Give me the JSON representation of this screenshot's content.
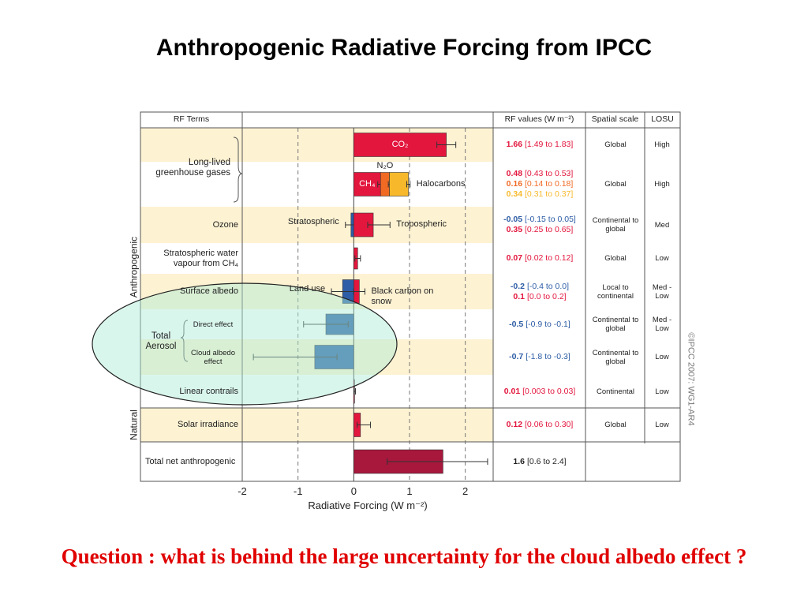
{
  "title": "Anthropogenic Radiative Forcing from IPCC",
  "question": "Question : what is behind the large uncertainty for the cloud albedo effect ?",
  "chart_data": {
    "type": "bar",
    "orientation": "horizontal",
    "headers": [
      "RF Terms",
      "RF values (W m⁻²)",
      "Spatial scale",
      "LOSU"
    ],
    "group_labels": [
      "Anthropogenic",
      "Natural"
    ],
    "credit": "©IPCC 2007: WG1-AR4",
    "xlabel": "Radiative Forcing (W m⁻²)",
    "xlim": [
      -2,
      2.5
    ],
    "xticks": [
      -2,
      -1,
      0,
      1,
      2
    ],
    "grid": true,
    "rows": [
      {
        "group": "Long-lived greenhouse gases",
        "spatial": "Global",
        "losu": "High",
        "bars": [
          {
            "label": "CO₂",
            "label_position": "inside",
            "value": 1.66,
            "low": 1.49,
            "high": 1.83,
            "range_label": "[1.49 to 1.83]",
            "color": "#e3173e"
          }
        ]
      },
      {
        "spatial": "Global",
        "losu": "High",
        "bars": [
          {
            "label": "CH₄",
            "label_position": "inside",
            "value": 0.48,
            "low": 0.43,
            "high": 0.53,
            "range_label": "[0.43 to 0.53]",
            "color": "#e3173e"
          },
          {
            "label": "N₂O",
            "label_position": "above",
            "value": 0.16,
            "low": 0.14,
            "high": 0.18,
            "range_label": "[0.14 to 0.18]",
            "color": "#f06a24"
          },
          {
            "label": "Halocarbons",
            "label_position": "right",
            "value": 0.34,
            "low": 0.31,
            "high": 0.37,
            "range_label": "[0.31 to 0.37]",
            "color": "#f7b92b"
          }
        ]
      },
      {
        "term": "Ozone",
        "spatial": "Continental to global",
        "losu": "Med",
        "bars": [
          {
            "label": "Stratospheric",
            "label_position": "left",
            "value": -0.05,
            "low": -0.15,
            "high": 0.05,
            "range_label": "[-0.15 to 0.05]",
            "color": "#2d5da6"
          },
          {
            "label": "Tropospheric",
            "label_position": "right",
            "value": 0.35,
            "low": 0.25,
            "high": 0.65,
            "range_label": "[0.25 to 0.65]",
            "color": "#e3173e"
          }
        ]
      },
      {
        "term": "Stratospheric water vapour from CH₄",
        "spatial": "Global",
        "losu": "Low",
        "bars": [
          {
            "value": 0.07,
            "low": 0.02,
            "high": 0.12,
            "range_label": "[0.02 to 0.12]",
            "color": "#e3173e"
          }
        ]
      },
      {
        "term": "Surface albedo",
        "spatial": "Local to continental",
        "losu": "Med - Low",
        "bars": [
          {
            "label": "Land use",
            "label_position": "left",
            "value": -0.2,
            "low": -0.4,
            "high": 0.0,
            "range_label": "[-0.4 to 0.0]",
            "color": "#2d5da6"
          },
          {
            "label": "Black carbon on snow",
            "label_position": "right",
            "value": 0.1,
            "low": 0.0,
            "high": 0.2,
            "range_label": "[0.0 to 0.2]",
            "color": "#e3173e"
          }
        ]
      },
      {
        "group": "Total Aerosol",
        "term": "Direct effect",
        "spatial": "Continental to global",
        "losu": "Med - Low",
        "bars": [
          {
            "value": -0.5,
            "low": -0.9,
            "high": -0.1,
            "range_label": "[-0.9 to -0.1]",
            "color": "#2d5da6"
          }
        ]
      },
      {
        "term": "Cloud albedo effect",
        "spatial": "Continental to global",
        "losu": "Low",
        "bars": [
          {
            "value": -0.7,
            "low": -1.8,
            "high": -0.3,
            "range_label": "[-1.8 to -0.3]",
            "color": "#2d5da6"
          }
        ]
      },
      {
        "term": "Linear contrails",
        "spatial": "Continental",
        "losu": "Low",
        "bars": [
          {
            "value": 0.01,
            "low": 0.003,
            "high": 0.03,
            "range_label": "[0.003 to 0.03]",
            "color": "#e3173e"
          }
        ]
      },
      {
        "term": "Solar irradiance",
        "spatial": "Global",
        "losu": "Low",
        "bars": [
          {
            "value": 0.12,
            "low": 0.06,
            "high": 0.3,
            "range_label": "[0.06 to 0.30]",
            "color": "#e3173e"
          }
        ]
      },
      {
        "term": "Total net anthropogenic",
        "bars": [
          {
            "value": 1.6,
            "low": 0.6,
            "high": 2.4,
            "range_label": "[0.6 to 2.4]",
            "color": "#a8173c",
            "label_color": "#222222"
          }
        ]
      }
    ]
  }
}
